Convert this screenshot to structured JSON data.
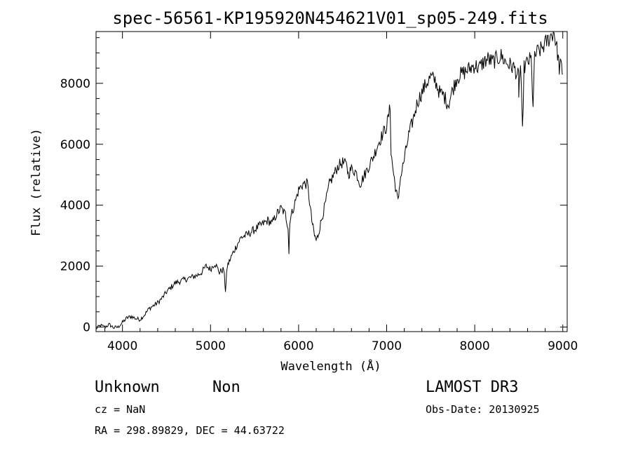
{
  "chart_data": {
    "type": "line",
    "title": "spec-56561-KP195920N454621V01_sp05-249.fits",
    "xlabel": "Wavelength (Å)",
    "ylabel": "Flux (relative)",
    "xlim": [
      3700,
      9050
    ],
    "ylim": [
      -150,
      9700
    ],
    "xticks": [
      4000,
      5000,
      6000,
      7000,
      8000,
      9000
    ],
    "yticks": [
      0,
      2000,
      4000,
      6000,
      8000
    ],
    "xtick_labels": [
      "4000",
      "5000",
      "6000",
      "7000",
      "8000",
      "9000"
    ],
    "ytick_labels": [
      "0",
      "2000",
      "4000",
      "6000",
      "8000"
    ],
    "series": [
      {
        "name": "flux",
        "x": [
          3700,
          3750,
          3800,
          3850,
          3900,
          3950,
          4000,
          4050,
          4100,
          4150,
          4200,
          4250,
          4300,
          4350,
          4400,
          4450,
          4500,
          4550,
          4600,
          4650,
          4700,
          4750,
          4800,
          4850,
          4900,
          4950,
          5000,
          5050,
          5100,
          5150,
          5170,
          5190,
          5250,
          5300,
          5350,
          5400,
          5450,
          5500,
          5550,
          5600,
          5650,
          5700,
          5750,
          5800,
          5850,
          5880,
          5890,
          5900,
          5950,
          6000,
          6050,
          6100,
          6150,
          6180,
          6200,
          6220,
          6250,
          6300,
          6350,
          6400,
          6450,
          6500,
          6550,
          6563,
          6600,
          6650,
          6700,
          6750,
          6800,
          6850,
          6900,
          6950,
          7000,
          7040,
          7050,
          7080,
          7100,
          7130,
          7150,
          7200,
          7250,
          7300,
          7350,
          7400,
          7450,
          7500,
          7550,
          7600,
          7650,
          7700,
          7750,
          7800,
          7850,
          7900,
          7950,
          8000,
          8050,
          8100,
          8150,
          8200,
          8250,
          8300,
          8350,
          8400,
          8450,
          8498,
          8500,
          8520,
          8542,
          8560,
          8600,
          8640,
          8662,
          8680,
          8700,
          8750,
          8800,
          8850,
          8900,
          8940,
          8960,
          8980,
          9000
        ],
        "values": [
          -50,
          50,
          0,
          80,
          -20,
          0,
          150,
          300,
          350,
          280,
          250,
          400,
          600,
          700,
          800,
          950,
          1150,
          1300,
          1450,
          1500,
          1550,
          1600,
          1650,
          1700,
          1800,
          2000,
          1900,
          2100,
          1800,
          1900,
          1200,
          2000,
          2400,
          2700,
          2950,
          3000,
          3100,
          3200,
          3300,
          3400,
          3500,
          3400,
          3700,
          3900,
          3700,
          3300,
          2400,
          3500,
          4000,
          4500,
          4700,
          4700,
          3500,
          3000,
          2850,
          3000,
          3400,
          4000,
          4700,
          5000,
          5300,
          5400,
          5300,
          5000,
          5200,
          5100,
          4700,
          5000,
          5300,
          5600,
          6000,
          6300,
          6600,
          7200,
          5700,
          5000,
          4600,
          4100,
          4800,
          5500,
          6300,
          6800,
          7400,
          7700,
          8000,
          8200,
          8100,
          7700,
          7600,
          7300,
          7800,
          8200,
          8300,
          8400,
          8500,
          8600,
          8500,
          8700,
          8800,
          8700,
          8800,
          8900,
          8700,
          8600,
          8500,
          8200,
          7700,
          8600,
          6400,
          8500,
          8700,
          8800,
          7300,
          8800,
          9000,
          9100,
          9300,
          9500,
          9700,
          9000,
          8500,
          8600,
          8300
        ]
      }
    ],
    "annotations": {
      "object_class": "Unknown",
      "subclass": "Non",
      "survey": "LAMOST DR3",
      "cz": "cz = NaN",
      "obs_date": "Obs-Date: 20130925",
      "coords": "RA = 298.89829, DEC =  44.63722"
    }
  }
}
